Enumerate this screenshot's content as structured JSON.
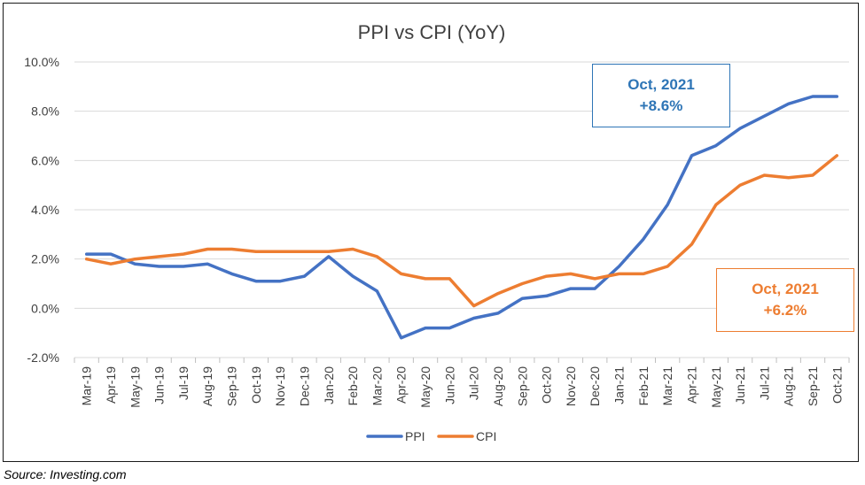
{
  "source": "Source:  Investing.com",
  "chart_data": {
    "type": "line",
    "title": "PPI vs CPI (YoY)",
    "xlabel": "",
    "ylabel": "",
    "ylim": [
      -2.0,
      10.0
    ],
    "yticks": [
      "-2.0%",
      "0.0%",
      "2.0%",
      "4.0%",
      "6.0%",
      "8.0%",
      "10.0%"
    ],
    "grid": true,
    "legend": "bottom",
    "categories": [
      "Mar-19",
      "Apr-19",
      "May-19",
      "Jun-19",
      "Jul-19",
      "Aug-19",
      "Sep-19",
      "Oct-19",
      "Nov-19",
      "Dec-19",
      "Jan-20",
      "Feb-20",
      "Mar-20",
      "Apr-20",
      "May-20",
      "Jun-20",
      "Jul-20",
      "Aug-20",
      "Sep-20",
      "Oct-20",
      "Nov-20",
      "Dec-20",
      "Jan-21",
      "Feb-21",
      "Mar-21",
      "Apr-21",
      "May-21",
      "Jun-21",
      "Jul-21",
      "Aug-21",
      "Sep-21",
      "Oct-21"
    ],
    "series": [
      {
        "name": "PPI",
        "color": "#4472c4",
        "values": [
          2.2,
          2.2,
          1.8,
          1.7,
          1.7,
          1.8,
          1.4,
          1.1,
          1.1,
          1.3,
          2.1,
          1.3,
          0.7,
          -1.2,
          -0.8,
          -0.8,
          -0.4,
          -0.2,
          0.4,
          0.5,
          0.8,
          0.8,
          1.7,
          2.8,
          4.2,
          6.2,
          6.6,
          7.3,
          7.8,
          8.3,
          8.6,
          8.6
        ]
      },
      {
        "name": "CPI",
        "color": "#ed7d31",
        "values": [
          2.0,
          1.8,
          2.0,
          2.1,
          2.2,
          2.4,
          2.4,
          2.3,
          2.3,
          2.3,
          2.3,
          2.4,
          2.1,
          1.4,
          1.2,
          1.2,
          0.1,
          0.6,
          1.0,
          1.3,
          1.4,
          1.2,
          1.4,
          1.4,
          1.7,
          2.6,
          4.2,
          5.0,
          5.4,
          5.3,
          5.4,
          6.2
        ]
      }
    ],
    "annotations": [
      {
        "series": "PPI",
        "line1": "Oct, 2021",
        "line2": "+8.6%"
      },
      {
        "series": "CPI",
        "line1": "Oct, 2021",
        "line2": "+6.2%"
      }
    ]
  }
}
